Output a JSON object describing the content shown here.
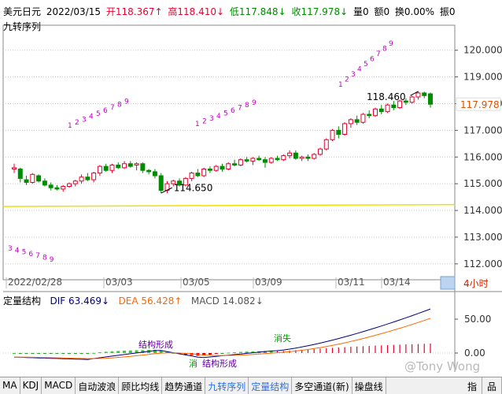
{
  "header": {
    "title": "美元日元",
    "date": "2022/03/15",
    "open_label": "开",
    "open": "118.367",
    "high_label": "高",
    "high": "118.410",
    "low_label": "低",
    "low": "117.848",
    "close_label": "收",
    "close": "117.978",
    "volume": "量0",
    "amount": "额0",
    "turnover": "换0.00%",
    "amplitude": "振0",
    "arrow_up": "↑",
    "arrow_down": "↓",
    "subtitle": "九转序列"
  },
  "colors": {
    "up": "#e8002f",
    "down": "#008c00",
    "nine": "#c000c0",
    "dif": "#000080",
    "dea": "#ff6600",
    "yellowLine": "#f0e000",
    "last": "#e05000"
  },
  "main_chart": {
    "y_ticks": [
      "120.000",
      "119.000",
      "118.000",
      "117.000",
      "116.000",
      "115.000",
      "114.000",
      "113.000",
      "112.000"
    ],
    "last_price": "117.978",
    "high_mark": "118.460",
    "low_mark": "114.650",
    "x_labels": [
      "2022/02/28",
      "03/03",
      "03/05",
      "03/09",
      "03/11",
      "03/14"
    ],
    "period_button": "4小时"
  },
  "macd_panel": {
    "title": "定量结构",
    "dif_label": "DIF",
    "dif": "63.469",
    "dea_label": "DEA",
    "dea": "56.428",
    "macd_label": "MACD",
    "macd": "14.082",
    "y_ticks": [
      "50.00",
      "0.00"
    ],
    "annotations": [
      "结构形成",
      "消",
      "结构形成",
      "消失"
    ]
  },
  "nine_seq": {
    "seq_a": [
      "3",
      "4",
      "5",
      "6",
      "7",
      "8",
      "9"
    ],
    "seq_b": [
      "1",
      "2",
      "3",
      "4",
      "5",
      "6",
      "7",
      "8",
      "9"
    ],
    "seq_c": [
      "1",
      "2",
      "3",
      "4",
      "5",
      "6",
      "7",
      "8",
      "9"
    ],
    "seq_d": [
      "1",
      "2",
      "3",
      "4",
      "5",
      "6",
      "7",
      "8",
      "9"
    ]
  },
  "tabs": [
    "MA",
    "KDJ",
    "MACD",
    "自动波浪",
    "顾比均线",
    "趋势通道",
    "九转序列",
    "定量结构",
    "多空通道(新)",
    "操盘线"
  ],
  "tabs_active": [
    "九转序列",
    "定量结构"
  ],
  "tabs_right": [
    "指",
    "品"
  ],
  "watermark": "@Tony Wong",
  "chart_data": {
    "type": "candlestick",
    "title": "美元日元",
    "ylim": [
      111.7,
      120.7
    ],
    "ohlc": [
      [
        115.55,
        115.75,
        115.4,
        115.6
      ],
      [
        115.55,
        115.6,
        115.05,
        115.2
      ],
      [
        115.15,
        115.3,
        114.95,
        115.05
      ],
      [
        115.05,
        115.4,
        115.0,
        115.35
      ],
      [
        115.3,
        115.35,
        115.05,
        115.1
      ],
      [
        115.1,
        115.2,
        114.9,
        114.95
      ],
      [
        114.95,
        115.05,
        114.75,
        114.85
      ],
      [
        114.85,
        114.95,
        114.75,
        114.8
      ],
      [
        114.8,
        114.95,
        114.7,
        114.9
      ],
      [
        114.9,
        115.05,
        114.85,
        115.0
      ],
      [
        115.0,
        115.15,
        114.9,
        115.1
      ],
      [
        115.1,
        115.35,
        115.0,
        115.25
      ],
      [
        115.25,
        115.4,
        115.1,
        115.15
      ],
      [
        115.15,
        115.45,
        115.05,
        115.4
      ],
      [
        115.4,
        115.7,
        115.3,
        115.65
      ],
      [
        115.65,
        115.75,
        115.45,
        115.5
      ],
      [
        115.5,
        115.75,
        115.4,
        115.7
      ],
      [
        115.7,
        115.8,
        115.55,
        115.6
      ],
      [
        115.6,
        115.85,
        115.55,
        115.75
      ],
      [
        115.75,
        115.85,
        115.6,
        115.65
      ],
      [
        115.7,
        115.8,
        115.5,
        115.75
      ],
      [
        115.75,
        115.8,
        115.4,
        115.5
      ],
      [
        115.5,
        115.55,
        115.35,
        115.45
      ],
      [
        115.45,
        115.55,
        115.2,
        115.3
      ],
      [
        115.3,
        115.4,
        114.65,
        114.75
      ],
      [
        114.75,
        115.1,
        114.65,
        115.0
      ],
      [
        115.0,
        115.15,
        114.9,
        115.1
      ],
      [
        115.1,
        115.2,
        114.9,
        114.95
      ],
      [
        114.95,
        115.25,
        114.9,
        115.2
      ],
      [
        115.2,
        115.45,
        115.1,
        115.4
      ],
      [
        115.4,
        115.55,
        115.25,
        115.3
      ],
      [
        115.3,
        115.6,
        115.25,
        115.55
      ],
      [
        115.55,
        115.65,
        115.4,
        115.5
      ],
      [
        115.5,
        115.7,
        115.45,
        115.65
      ],
      [
        115.65,
        115.75,
        115.45,
        115.55
      ],
      [
        115.55,
        115.8,
        115.5,
        115.75
      ],
      [
        115.75,
        115.9,
        115.65,
        115.7
      ],
      [
        115.7,
        115.95,
        115.65,
        115.9
      ],
      [
        115.9,
        116.0,
        115.8,
        115.85
      ],
      [
        115.85,
        116.0,
        115.7,
        115.95
      ],
      [
        115.95,
        116.05,
        115.85,
        115.9
      ],
      [
        115.9,
        116.0,
        115.6,
        115.8
      ],
      [
        115.8,
        116.0,
        115.75,
        115.95
      ],
      [
        115.95,
        116.05,
        115.85,
        115.9
      ],
      [
        115.9,
        116.1,
        115.85,
        116.05
      ],
      [
        116.05,
        116.25,
        115.95,
        116.15
      ],
      [
        116.15,
        116.25,
        115.9,
        115.95
      ],
      [
        115.95,
        116.05,
        115.85,
        116.0
      ],
      [
        116.0,
        116.1,
        115.85,
        115.95
      ],
      [
        115.95,
        116.15,
        115.9,
        116.1
      ],
      [
        116.1,
        116.35,
        116.05,
        116.3
      ],
      [
        116.3,
        116.7,
        116.25,
        116.65
      ],
      [
        116.65,
        117.05,
        116.6,
        117.0
      ],
      [
        117.0,
        117.15,
        116.7,
        116.85
      ],
      [
        116.85,
        117.3,
        116.8,
        117.25
      ],
      [
        117.25,
        117.45,
        117.1,
        117.4
      ],
      [
        117.4,
        117.55,
        117.2,
        117.3
      ],
      [
        117.3,
        117.65,
        117.25,
        117.6
      ],
      [
        117.6,
        117.75,
        117.45,
        117.55
      ],
      [
        117.55,
        117.85,
        117.5,
        117.8
      ],
      [
        117.8,
        117.95,
        117.6,
        117.7
      ],
      [
        117.7,
        118.0,
        117.65,
        117.95
      ],
      [
        117.95,
        118.1,
        117.75,
        117.85
      ],
      [
        117.85,
        118.15,
        117.8,
        118.1
      ],
      [
        118.1,
        118.2,
        117.95,
        118.05
      ],
      [
        118.05,
        118.3,
        118.0,
        118.25
      ],
      [
        118.25,
        118.46,
        118.15,
        118.4
      ],
      [
        118.4,
        118.45,
        118.2,
        118.3
      ],
      [
        118.367,
        118.41,
        117.848,
        117.978
      ]
    ]
  }
}
